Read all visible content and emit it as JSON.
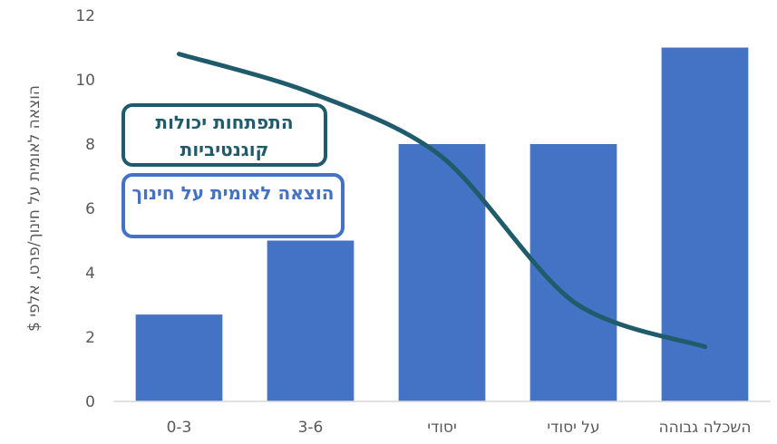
{
  "chart_data": {
    "type": "bar",
    "categories": [
      "0-3",
      "3-6",
      "יסודי",
      "על יסודי",
      "השכלה גבוהה"
    ],
    "series": [
      {
        "name": "הוצאה לאומית על חינוך",
        "type": "bar",
        "color": "#4472c4",
        "values": [
          2.7,
          5.0,
          8.0,
          8.0,
          11.0
        ]
      },
      {
        "name": "התפתחות יכולות קוגנטיביות",
        "type": "line",
        "color": "#1f5b6b",
        "values": [
          10.8,
          9.6,
          7.6,
          3.1,
          1.7
        ]
      }
    ],
    "ylabel": "הוצאה לאומית על חינוך/פרט, אלפי $",
    "ylim": [
      0,
      12
    ],
    "yticks": [
      "0",
      "2",
      "4",
      "6",
      "8",
      "10",
      "12"
    ],
    "grid": false,
    "legend_position": "left"
  },
  "legend": {
    "line_label": "התפתחות יכולות קוגנטיביות",
    "bar_label": "הוצאה לאומית על חינוך"
  }
}
